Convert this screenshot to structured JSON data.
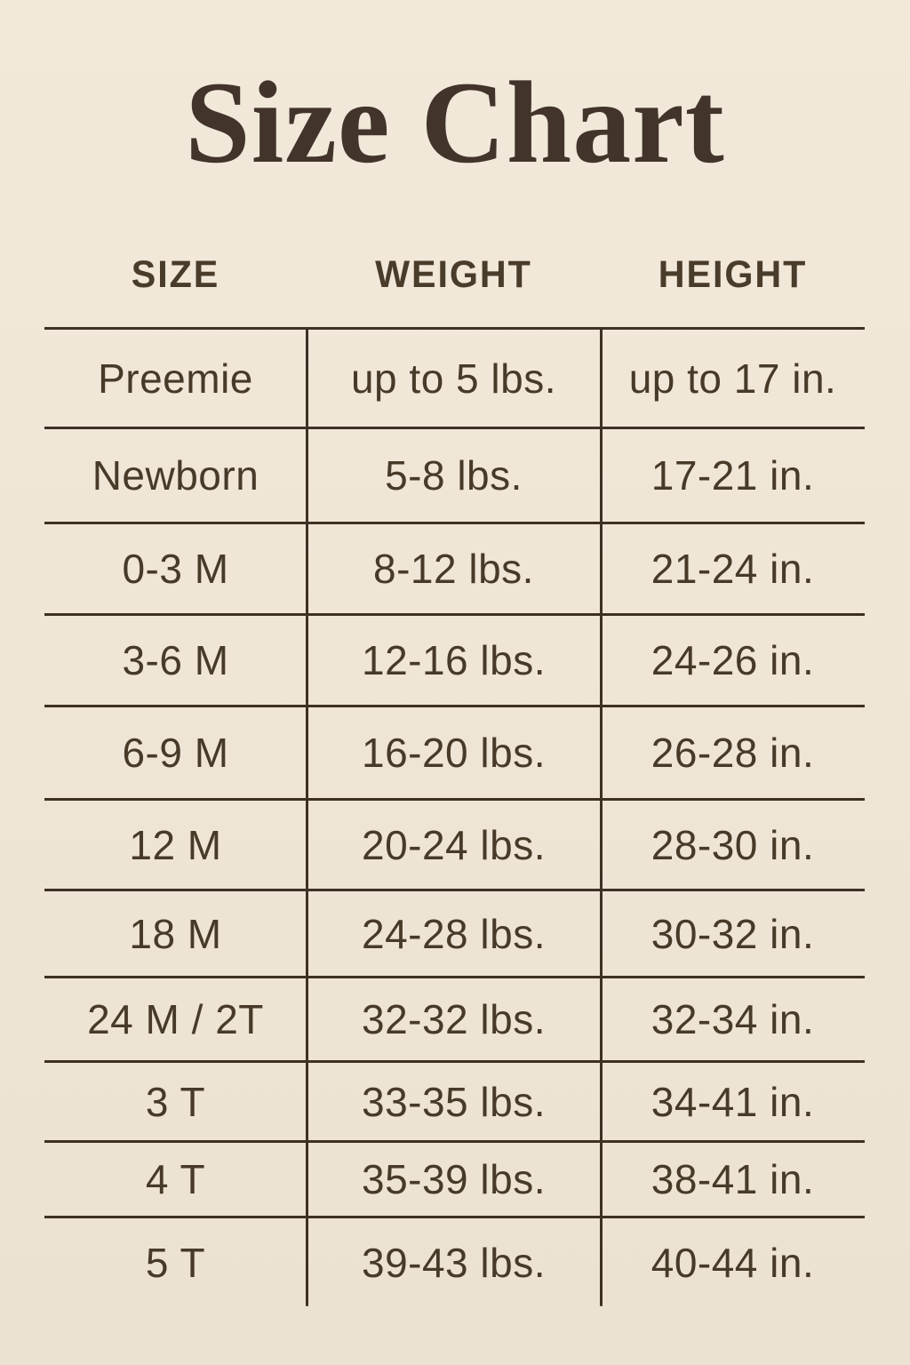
{
  "page": {
    "title": "Size Chart",
    "colors": {
      "background_top": "#f2e9db",
      "background_bottom": "#ece2d2",
      "ink": "#473a29",
      "line": "#3d3124"
    }
  },
  "chart_data": {
    "type": "table",
    "title": "Size Chart",
    "columns": [
      "SIZE",
      "WEIGHT",
      "HEIGHT"
    ],
    "rows": [
      [
        "Preemie",
        "up to 5 lbs.",
        "up to 17 in."
      ],
      [
        "Newborn",
        "5-8 lbs.",
        "17-21 in."
      ],
      [
        "0-3 M",
        "8-12 lbs.",
        "21-24 in."
      ],
      [
        "3-6 M",
        "12-16 lbs.",
        "24-26 in."
      ],
      [
        "6-9 M",
        "16-20 lbs.",
        "26-28 in."
      ],
      [
        "12 M",
        "20-24 lbs.",
        "28-30 in."
      ],
      [
        "18 M",
        "24-28 lbs.",
        "30-32 in."
      ],
      [
        "24 M / 2T",
        "32-32 lbs.",
        "32-34 in."
      ],
      [
        "3 T",
        "33-35 lbs.",
        "34-41 in."
      ],
      [
        "4 T",
        "35-39 lbs.",
        "38-41 in."
      ],
      [
        "5 T",
        "39-43 lbs.",
        "40-44 in."
      ]
    ],
    "layout": {
      "grid": "horizontal rules between all rows, two vertical column dividers, no outer side borders, no bottom border on last row",
      "legend_position": "none"
    }
  }
}
